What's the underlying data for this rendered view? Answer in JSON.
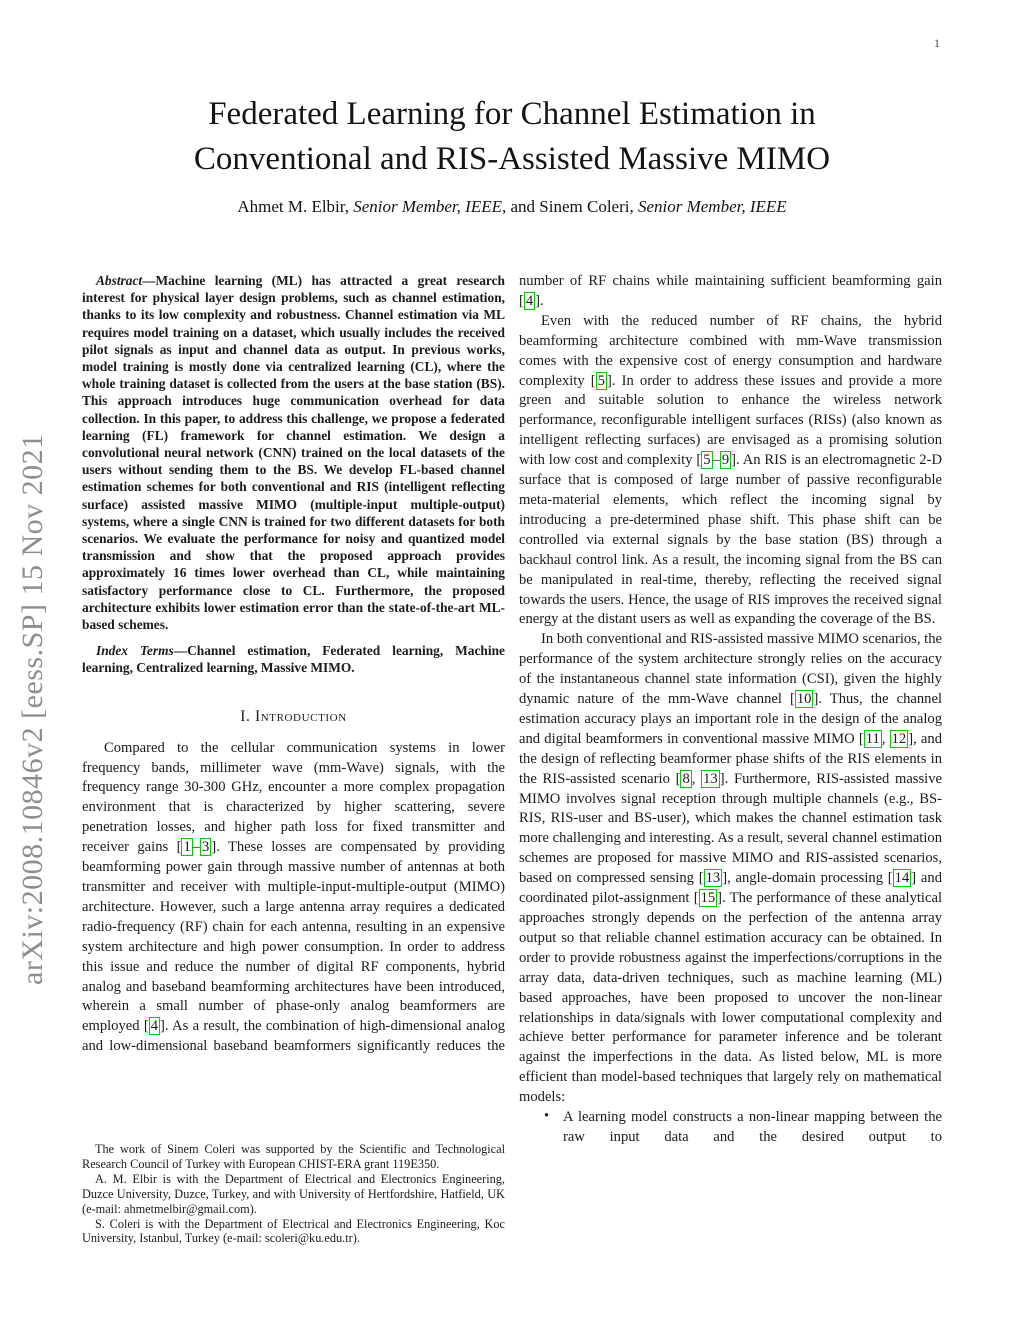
{
  "colors": {
    "citation_green": "#00cc00",
    "banner_gray": "#8e8e8e",
    "text": "#1b1b1b"
  },
  "page": {
    "number": "1",
    "arxiv_banner": "arXiv:2008.10846v2  [eess.SP]  15 Nov 2021"
  },
  "header": {
    "title_line1": "Federated Learning for Channel Estimation in",
    "title_line2": "Conventional and RIS-Assisted Massive MIMO",
    "authors_runs": [
      {
        "t": "Ahmet M. Elbir, "
      },
      {
        "t": "Senior Member, IEEE",
        "s": "i"
      },
      {
        "t": ", and Sinem Coleri, "
      },
      {
        "t": "Senior Member, IEEE",
        "s": "i"
      }
    ]
  },
  "left_column": {
    "blocks": [
      {
        "type": "abstract",
        "name": "abstract",
        "runs": [
          {
            "t": "Abstract",
            "s": "bi"
          },
          {
            "t": "—Machine learning (ML) has attracted a great research interest for physical layer design problems, such as channel estimation, thanks to its low complexity and robustness. Channel estimation via ML requires model training on a dataset, which usually includes the received pilot signals as input and channel data as output. In previous works, model training is mostly done via centralized learning (CL), where the whole training dataset is collected from the users at the base station (BS). This approach introduces huge communication overhead for data collection. In this paper, to address this challenge, we propose a federated learning (FL) framework for channel estimation. We design a convolutional neural network (CNN) trained on the local datasets of the users without sending them to the BS. We develop FL-based channel estimation schemes for both conventional and RIS (intelligent reflecting surface) assisted massive MIMO (multiple-input multiple-output) systems, where a single CNN is trained for two different datasets for both scenarios. We evaluate the performance for noisy and quantized model transmission and show that the proposed approach provides approximately 16 times lower overhead than CL, while maintaining satisfactory performance close to CL. Furthermore, the proposed architecture exhibits lower estimation error than the state-of-the-art ML-based schemes."
          }
        ]
      },
      {
        "type": "index",
        "name": "index-terms",
        "runs": [
          {
            "t": "Index Terms",
            "s": "bi"
          },
          {
            "t": "—Channel estimation, Federated learning, Machine learning, Centralized learning, Massive MIMO."
          }
        ]
      },
      {
        "type": "heading",
        "name": "section-heading-introduction",
        "runs": [
          {
            "t": "I. Introduction"
          }
        ]
      },
      {
        "type": "para",
        "name": "intro-paragraph-1",
        "justify_last": true,
        "runs": [
          {
            "t": "Compared to the cellular communication systems in lower frequency bands, millimeter wave (mm-Wave) signals, with the frequency range 30-300 GHz, encounter a more complex propagation environment that is characterized by higher scattering, severe penetration losses, and higher path loss for fixed transmitter and receiver gains ["
          },
          {
            "t": "1",
            "c": true
          },
          {
            "t": "–"
          },
          {
            "t": "3",
            "c": true
          },
          {
            "t": "]. These losses are compensated by providing beamforming power gain through massive number of antennas at both transmitter and receiver with multiple-input-multiple-output (MIMO) architecture. However, such a large antenna array requires a dedicated radio-frequency (RF) chain for each antenna, resulting in an expensive system architecture and high power consumption. In order to address this issue and reduce the number of digital RF components, hybrid analog and baseband beamforming architectures have been introduced, wherein a small number of phase-only analog beamformers are employed ["
          },
          {
            "t": "4",
            "c": true
          },
          {
            "t": "]. As a result, the combination of high-dimensional analog and low-dimensional baseband beamformers significantly reduces the"
          }
        ]
      }
    ]
  },
  "footnotes": {
    "blocks": [
      {
        "type": "footnote",
        "name": "footnote-funding",
        "runs": [
          {
            "t": "The work of Sinem Coleri was supported by the Scientific and Technological Research Council of Turkey with European CHIST-ERA grant 119E350."
          }
        ]
      },
      {
        "type": "footnote",
        "name": "footnote-author-elbir",
        "runs": [
          {
            "t": "A. M. Elbir is with the Department of Electrical and Electronics Engineering, Duzce University, Duzce, Turkey, and with University of Hertfordshire, Hatfield, UK (e-mail: ahmetmelbir@gmail.com)."
          }
        ]
      },
      {
        "type": "footnote",
        "name": "footnote-author-coleri",
        "runs": [
          {
            "t": "S. Coleri is with the Department of Electrical and Electronics Engineering, Koc University, Istanbul, Turkey (e-mail: scoleri@ku.edu.tr)."
          }
        ]
      }
    ]
  },
  "right_column": {
    "blocks": [
      {
        "type": "para-cont",
        "name": "intro-paragraph-1-continued",
        "runs": [
          {
            "t": "number of RF chains while maintaining sufficient beamforming gain ["
          },
          {
            "t": "4",
            "c": true
          },
          {
            "t": "]."
          }
        ]
      },
      {
        "type": "para",
        "name": "paragraph-ris-overview",
        "runs": [
          {
            "t": "Even with the reduced number of RF chains, the hybrid beamforming architecture combined with mm-Wave transmission comes with the expensive cost of energy consumption and hardware complexity ["
          },
          {
            "t": "5",
            "c": true
          },
          {
            "t": "]. In order to address these issues and provide a more green and suitable solution to enhance the wireless network performance, reconfigurable intelligent surfaces (RISs) (also known as intelligent reflecting surfaces) are envisaged as a promising solution with low cost and complexity ["
          },
          {
            "t": "5",
            "c": true
          },
          {
            "t": "–"
          },
          {
            "t": "9",
            "c": true
          },
          {
            "t": "]. An RIS is an electromagnetic 2-D surface that is composed of large number of passive reconfigurable meta-material elements, which reflect the incoming signal by introducing a pre-determined phase shift. This phase shift can be controlled via external signals by the base station (BS) through a backhaul control link. As a result, the incoming signal from the BS can be manipulated in real-time, thereby, reflecting the received signal towards the users. Hence, the usage of RIS improves the received signal energy at the distant users as well as expanding the coverage of the BS."
          }
        ]
      },
      {
        "type": "para",
        "name": "paragraph-channel-estimation",
        "runs": [
          {
            "t": "In both conventional and RIS-assisted massive MIMO scenarios, the performance of the system architecture strongly relies on the accuracy of the instantaneous channel state information (CSI), given the highly dynamic nature of the mm-Wave channel ["
          },
          {
            "t": "10",
            "c": true
          },
          {
            "t": "]. Thus, the channel estimation accuracy plays an important role in the design of the analog and digital beamformers in conventional massive MIMO ["
          },
          {
            "t": "11",
            "c": true
          },
          {
            "t": ", "
          },
          {
            "t": "12",
            "c": true
          },
          {
            "t": "], and the design of reflecting beamformer phase shifts of the RIS elements in the RIS-assisted scenario ["
          },
          {
            "t": "8",
            "c": true
          },
          {
            "t": ", "
          },
          {
            "t": "13",
            "c": true
          },
          {
            "t": "]. Furthermore, RIS-assisted massive MIMO involves signal reception through multiple channels (e.g., BS-RIS, RIS-user and BS-user), which makes the channel estimation task more challenging and interesting. As a result, several channel estimation schemes are proposed for massive MIMO and RIS-assisted scenarios, based on compressed sensing ["
          },
          {
            "t": "13",
            "c": true
          },
          {
            "t": "], angle-domain processing ["
          },
          {
            "t": "14",
            "c": true
          },
          {
            "t": "] and coordinated pilot-assignment ["
          },
          {
            "t": "15",
            "c": true
          },
          {
            "t": "]. The performance of these analytical approaches strongly depends on the perfection of the antenna array output so that reliable channel estimation accuracy can be obtained. In order to provide robustness against the imperfections/corruptions in the array data, data-driven techniques, such as machine learning (ML) based approaches, have been proposed to uncover the non-linear relationships in data/signals with lower computational complexity and achieve better performance for parameter inference and be tolerant against the imperfections in the data. As listed below, ML is more efficient than model-based techniques that largely rely on mathematical models:"
          }
        ]
      },
      {
        "type": "bullet",
        "name": "bullet-learning-model",
        "marker": "•",
        "justify_last": true,
        "runs": [
          {
            "t": "A learning model constructs a non-linear mapping between the raw input data and the desired output to"
          }
        ]
      }
    ]
  }
}
